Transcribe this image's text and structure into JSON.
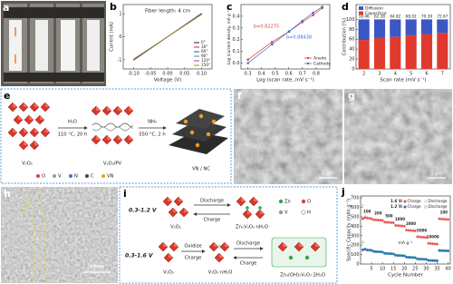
{
  "panel_labels": [
    "a",
    "b",
    "c",
    "d",
    "e",
    "f",
    "g",
    "h",
    "i",
    "j"
  ],
  "panel_e": {
    "step1_reagent": "H₂O",
    "step1_condition": "110 °C, 20 h",
    "step2_reagent": "NH₃",
    "step2_condition": "550 °C, 2 h",
    "start": "V₂O₅",
    "intermediate": "V₂O₅/PV",
    "product": "VN / NC",
    "legend": [
      "O",
      "V",
      "N",
      "C",
      "VN"
    ]
  },
  "panel_f": {
    "scale_bar": "1 μm"
  },
  "panel_g": {
    "scale_bar": "1 μm"
  },
  "panel_h": {
    "scale_bar": "10nm",
    "thickness": "4.9 nm"
  },
  "panel_i": {
    "window_low": "0.3-1.2 V",
    "window_high": "0.3-1.6 V",
    "low_discharge": "Discharge",
    "low_charge": "Charge",
    "low_start": "V₂O₅",
    "low_product": "ZnₓV₂O₅·nH₂O",
    "high_oxidize": "Oxidize",
    "high_charge1": "Charge",
    "high_start": "V₂O₅",
    "high_middle": "V₂O₅·nH₂O",
    "high_discharge": "Discharge",
    "high_charge2": "Charge",
    "high_product": "Zn₃(OH)₂V₂O₇·2H₂O",
    "legend": [
      "Zn",
      "O",
      "V",
      "H"
    ]
  },
  "chart_data": [
    {
      "type": "line",
      "annotation": "Fiber length: 4 cm",
      "xlabel": "Voltage (V)",
      "ylabel": "Current (mA)",
      "x": [
        -0.1,
        0.1
      ],
      "xlim": [
        -0.13,
        0.13
      ],
      "xticks": [
        {
          "value": -0.1,
          "label": "-0.10"
        },
        {
          "value": -0.05,
          "label": "-0.05"
        },
        {
          "value": 0,
          "label": "0.00"
        },
        {
          "value": 0.05,
          "label": "0.05"
        },
        {
          "value": 0.1,
          "label": "0.10"
        }
      ],
      "ylim": [
        -1.4,
        1.4
      ],
      "yticks": [
        -1,
        0,
        1
      ],
      "legend": "lower right",
      "series": [
        {
          "name": "0°",
          "color": "#222222",
          "values": [
            -1.02,
            1.02
          ]
        },
        {
          "name": "30°",
          "color": "#e02424",
          "values": [
            -1.01,
            1.01
          ]
        },
        {
          "name": "60°",
          "color": "#2a4fd6",
          "values": [
            -1.0,
            1.0
          ]
        },
        {
          "name": "90°",
          "color": "#19a55a",
          "values": [
            -0.99,
            0.99
          ]
        },
        {
          "name": "120°",
          "color": "#c42bc4",
          "values": [
            -0.98,
            0.98
          ]
        },
        {
          "name": "150°",
          "color": "#9a9a1a",
          "values": [
            -0.97,
            0.97
          ]
        }
      ]
    },
    {
      "type": "scatter",
      "xlabel": "Log (scan rate, mV s⁻¹)",
      "ylabel": "Log (current density, mA g⁻¹)",
      "x": [
        0.301,
        0.477,
        0.602,
        0.699,
        0.778,
        0.845
      ],
      "xlim": [
        0.25,
        0.9
      ],
      "xticks": [
        0.3,
        0.4,
        0.5,
        0.6,
        0.7,
        0.8
      ],
      "ylim": [
        -0.05,
        0.5
      ],
      "yticks": [
        {
          "value": 0,
          "label": "0.0"
        },
        0.1,
        0.2,
        0.3,
        0.4
      ],
      "legend": "lower right",
      "series": [
        {
          "name": "Anode",
          "color": "#e0403a",
          "fit_label": "b=0.82275",
          "values": [
            0.03,
            0.18,
            0.27,
            0.35,
            0.41,
            0.47
          ]
        },
        {
          "name": "Cathode",
          "color": "#3f6fd1",
          "fit_label": "b=0.88438",
          "values": [
            0.0,
            0.16,
            0.27,
            0.36,
            0.43,
            0.48
          ]
        }
      ]
    },
    {
      "type": "bar",
      "stacked": true,
      "xlabel": "Scan rate (mV s⁻¹)",
      "ylabel": "Contribution (%)",
      "categories": [
        "2",
        "3",
        "4",
        "5",
        "6",
        "7"
      ],
      "ylim": [
        0,
        130
      ],
      "yticks": [
        0,
        20,
        40,
        60,
        80,
        100
      ],
      "legend": "upper left",
      "series": [
        {
          "name": "Diffusion",
          "color": "#3a57c4",
          "values": [
            41.54,
            37.62,
            35.18,
            31.98,
            29.61,
            27.33
          ]
        },
        {
          "name": "Capacitive",
          "color": "#e03a2f",
          "labels": true,
          "values": [
            58.46,
            62.38,
            64.82,
            68.02,
            70.39,
            72.67
          ]
        }
      ]
    },
    {
      "type": "scatter",
      "xlabel": "Cycle Number",
      "ylabel": "Specific Capacity (mAh g⁻¹)",
      "x": [
        1,
        2,
        3,
        4,
        5,
        6,
        7,
        8,
        9,
        10,
        11,
        12,
        13,
        14,
        15,
        16,
        17,
        18,
        19,
        20,
        21,
        22,
        23,
        24,
        25,
        26,
        27,
        28,
        29,
        30,
        31,
        32,
        33,
        34,
        35,
        36,
        37,
        38,
        39,
        40
      ],
      "xlim": [
        0,
        41
      ],
      "xticks": [
        5,
        10,
        15,
        20,
        25,
        30,
        35,
        40
      ],
      "ylim": [
        0,
        720
      ],
      "yticks": [
        0,
        100,
        200,
        300,
        400,
        500,
        600,
        700
      ],
      "legend": "upper right",
      "rate_labels": [
        "100",
        "200",
        "500",
        "1000",
        "2000",
        "5000",
        "10000",
        "100"
      ],
      "rate_unit": "mA g⁻¹",
      "groups": [
        {
          "name": "1.6 V:",
          "series": [
            {
              "name": "Charge",
              "color": "#e8454a",
              "values": [
                480,
                490,
                486,
                482,
                478,
                468,
                466,
                464,
                463,
                461,
                443,
                441,
                439,
                438,
                436,
                408,
                406,
                404,
                402,
                400,
                358,
                356,
                354,
                352,
                350,
                288,
                286,
                284,
                282,
                280,
                218,
                216,
                214,
                212,
                210,
                478,
                476,
                474,
                472,
                470
              ]
            },
            {
              "name": "Discharge",
              "color": "#f08c8c",
              "values": [
                620,
                500,
                490,
                485,
                480,
                470,
                468,
                466,
                465,
                463,
                445,
                443,
                441,
                440,
                438,
                410,
                408,
                406,
                404,
                402,
                360,
                358,
                356,
                354,
                352,
                290,
                288,
                286,
                284,
                282,
                220,
                218,
                216,
                214,
                212,
                480,
                478,
                476,
                474,
                472
              ]
            }
          ]
        },
        {
          "name": "1.2 V:",
          "series": [
            {
              "name": "Charge",
              "color": "#3a5fcd",
              "values": [
                150,
                155,
                148,
                146,
                144,
                132,
                130,
                129,
                128,
                126,
                112,
                110,
                109,
                108,
                106,
                92,
                90,
                89,
                88,
                86,
                72,
                70,
                69,
                68,
                66,
                53,
                52,
                51,
                50,
                49,
                38,
                37,
                36,
                35,
                34,
                142,
                141,
                140,
                139,
                138
              ]
            },
            {
              "name": "Discharge",
              "color": "#2a9d8f",
              "values": [
                230,
                160,
                150,
                148,
                146,
                135,
                133,
                131,
                130,
                128,
                115,
                113,
                112,
                110,
                108,
                95,
                93,
                92,
                90,
                88,
                75,
                73,
                72,
                70,
                68,
                55,
                54,
                53,
                52,
                51,
                40,
                39,
                38,
                37,
                36,
                145,
                144,
                143,
                142,
                141
              ]
            }
          ]
        }
      ]
    }
  ]
}
